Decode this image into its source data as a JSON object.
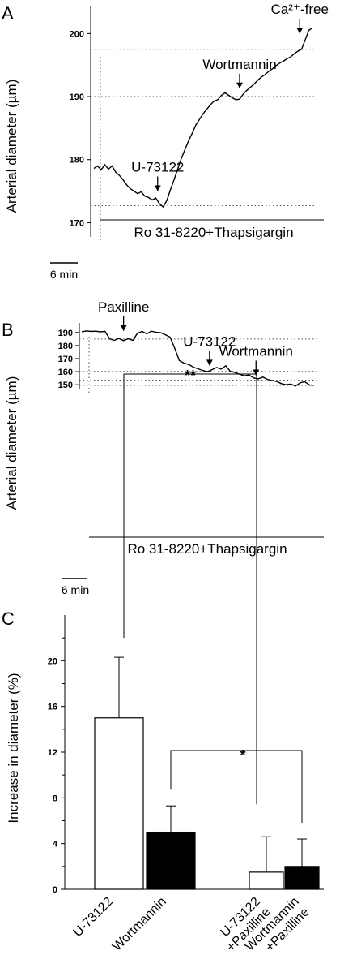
{
  "chart_data": [
    {
      "panel": "A",
      "type": "line",
      "ylabel": "Arterial diameter (µm)",
      "ylim": [
        168,
        203
      ],
      "yticks": [
        170,
        180,
        190,
        200
      ],
      "xlabel": "",
      "scalebar": "6 min",
      "bar_label": "Ro 31-8220+Thapsigargin",
      "annotations": [
        {
          "label": "U-73122",
          "x": 17.5,
          "y": 174.5
        },
        {
          "label": "Wortmannin",
          "x": 40,
          "y": 190.8
        },
        {
          "label": "Ca²⁺-free",
          "x": 56.5,
          "y": 199.5
        }
      ],
      "reference_levels": [
        197.5,
        190.0,
        179.0,
        172.7
      ],
      "series": [
        {
          "x": [
            0,
            1,
            2,
            3,
            4,
            5,
            6,
            7,
            8,
            9,
            10,
            11,
            12,
            13,
            14,
            15,
            16,
            17,
            18,
            19,
            20,
            21,
            22,
            23,
            24,
            25,
            26,
            27,
            28,
            29,
            30,
            31,
            32,
            33,
            34,
            35,
            36,
            37,
            38,
            39,
            40,
            41,
            42,
            43,
            44,
            45,
            46,
            47,
            48,
            49,
            50,
            51,
            52,
            53,
            54,
            55,
            56,
            57,
            58,
            59,
            60
          ],
          "y": [
            178.6,
            179.0,
            178.4,
            179.2,
            178.5,
            179.0,
            178.0,
            177.5,
            176.8,
            176.0,
            175.4,
            175.0,
            174.6,
            174.9,
            174.2,
            174.0,
            173.6,
            173.9,
            173.0,
            172.5,
            173.5,
            175.2,
            176.8,
            178.5,
            180.2,
            181.6,
            183.0,
            184.2,
            185.5,
            186.4,
            187.3,
            188.0,
            188.7,
            189.3,
            189.5,
            190.2,
            190.6,
            190.2,
            189.8,
            189.5,
            189.6,
            190.4,
            191.0,
            191.5,
            192.0,
            192.6,
            193.1,
            193.5,
            194.0,
            194.4,
            194.9,
            195.3,
            195.6,
            196.0,
            196.3,
            196.8,
            197.2,
            197.5,
            199.0,
            200.5,
            200.9
          ]
        }
      ]
    },
    {
      "panel": "B",
      "type": "line",
      "ylabel": "Arterial diameter (µm)",
      "ylim": [
        147,
        193
      ],
      "yticks": [
        150,
        160,
        170,
        180,
        190
      ],
      "xlabel": "",
      "scalebar": "6 min",
      "bar_label": "Ro 31-8220+Thapsigargin",
      "annotations": [
        {
          "label": "Paxilline",
          "x": 9,
          "y": 188.8
        },
        {
          "label": "U-73122",
          "x": 27.5,
          "y": 162.3
        },
        {
          "label": "Wortmannin",
          "x": 37.5,
          "y": 154.8
        }
      ],
      "reference_levels": [
        185.0,
        160.2,
        153.5,
        149.5
      ],
      "series": [
        {
          "x": [
            0,
            1,
            2,
            3,
            4,
            5,
            6,
            7,
            8,
            9,
            10,
            11,
            12,
            13,
            14,
            15,
            16,
            17,
            18,
            19,
            20,
            21,
            22,
            23,
            24,
            25,
            26,
            27,
            28,
            29,
            30,
            31,
            32,
            33,
            34,
            35,
            36,
            37,
            38,
            39,
            40,
            41,
            42,
            43,
            44,
            45,
            46,
            47,
            48,
            49,
            50
          ],
          "y": [
            190.6,
            191.2,
            190.8,
            191.0,
            190.5,
            190.9,
            185.2,
            184.0,
            185.5,
            183.8,
            185.2,
            184.0,
            189.5,
            190.8,
            189.0,
            191.0,
            190.2,
            189.8,
            188.3,
            186.5,
            178.0,
            168.5,
            166.5,
            165.5,
            163.5,
            162.2,
            161.0,
            160.0,
            161.5,
            163.2,
            162.0,
            164.5,
            160.2,
            159.3,
            158.0,
            156.8,
            157.5,
            155.2,
            154.5,
            155.8,
            154.0,
            153.2,
            152.5,
            150.8,
            150.0,
            150.5,
            149.0,
            151.5,
            152.3,
            149.8,
            149.6
          ]
        }
      ]
    },
    {
      "panel": "C",
      "type": "bar",
      "ylabel": "Increase in diameter (%)",
      "ylim": [
        0,
        24
      ],
      "yticks": [
        0,
        4,
        8,
        12,
        16,
        20
      ],
      "categories": [
        "U-73122",
        "Wortmannin",
        "U-73122\n+Paxilline",
        "Wortmannin\n+Paxilline"
      ],
      "values": [
        15.0,
        5.0,
        1.5,
        2.0
      ],
      "errors": [
        5.3,
        2.3,
        3.1,
        2.4
      ],
      "fills": [
        "#ffffff",
        "#000000",
        "#ffffff",
        "#000000"
      ],
      "significance": [
        {
          "pair": [
            0,
            2
          ],
          "label": "**"
        },
        {
          "pair": [
            1,
            3
          ],
          "label": "*"
        }
      ]
    }
  ]
}
